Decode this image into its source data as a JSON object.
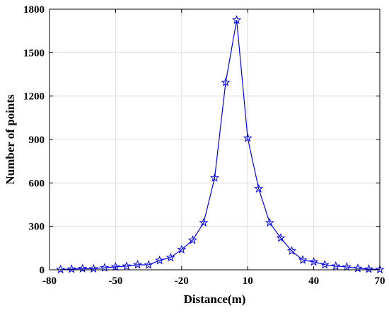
{
  "chart_data": {
    "type": "line",
    "title": "",
    "xlabel": "Distance(m)",
    "ylabel": "Number of points",
    "xlim": [
      -80,
      70
    ],
    "ylim": [
      0,
      1800
    ],
    "xticks": [
      -80,
      -50,
      -20,
      10,
      40,
      70
    ],
    "yticks": [
      0,
      300,
      600,
      900,
      1200,
      1500,
      1800
    ],
    "xtick_labels": [
      "-80",
      "-50",
      "-20",
      "10",
      "40",
      "70"
    ],
    "ytick_labels": [
      "0",
      "300",
      "600",
      "900",
      "1200",
      "1500",
      "1800"
    ],
    "grid": true,
    "legend": null,
    "marker": "star",
    "series": [
      {
        "color": "#0000ff",
        "x": [
          -75,
          -70,
          -65,
          -60,
          -55,
          -50,
          -45,
          -40,
          -35,
          -30,
          -25,
          -20,
          -15,
          -10,
          -5,
          0,
          5,
          10,
          15,
          20,
          25,
          30,
          35,
          40,
          45,
          50,
          55,
          60,
          65,
          70
        ],
        "y": [
          2,
          5,
          8,
          7,
          14,
          20,
          25,
          35,
          34,
          65,
          85,
          140,
          205,
          325,
          635,
          1295,
          1725,
          910,
          560,
          325,
          220,
          130,
          68,
          55,
          35,
          25,
          20,
          10,
          5,
          2
        ]
      }
    ]
  }
}
